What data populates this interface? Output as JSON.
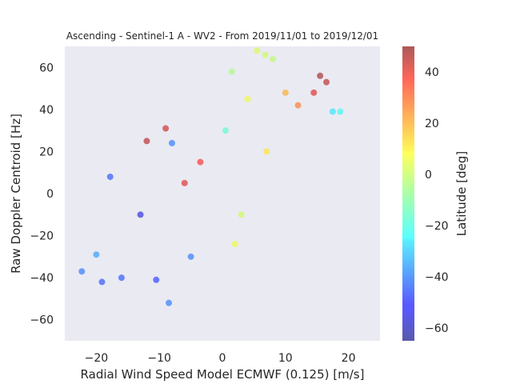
{
  "chart_data": {
    "type": "scatter",
    "title": "Ascending - Sentinel-1 A - WV2 - From 2019/11/01 to 2019/12/01",
    "xlabel": "Radial Wind Speed Model ECMWF (0.125) [m/s]",
    "ylabel": "Raw Doppler Centroid [Hz]",
    "xlim": [
      -25,
      25
    ],
    "ylim": [
      -70,
      70
    ],
    "xticks": [
      -20,
      -10,
      0,
      10,
      20
    ],
    "yticks": [
      -60,
      -40,
      -20,
      0,
      20,
      40,
      60
    ],
    "grid": false,
    "background": "#eaeaf2",
    "point_alpha": 0.55,
    "colorbar": {
      "label": "Latitude [deg]",
      "range": [
        -65,
        50
      ],
      "ticks": [
        -60,
        -40,
        -20,
        0,
        20,
        40
      ],
      "colormap": "jet"
    },
    "points": [
      {
        "x": -22.3,
        "y": -37,
        "c": -40
      },
      {
        "x": -19.1,
        "y": -42,
        "c": -45
      },
      {
        "x": -8.5,
        "y": -52,
        "c": -40
      },
      {
        "x": -17.8,
        "y": 8,
        "c": -45
      },
      {
        "x": 18.7,
        "y": 39,
        "c": -20
      },
      {
        "x": 17.5,
        "y": 39,
        "c": -25
      },
      {
        "x": 16.5,
        "y": 53,
        "c": 45
      },
      {
        "x": 15.5,
        "y": 56,
        "c": 48
      },
      {
        "x": 6.8,
        "y": 66,
        "c": 0
      },
      {
        "x": 5.5,
        "y": 68,
        "c": 2
      },
      {
        "x": 8.0,
        "y": 64,
        "c": -2
      },
      {
        "x": 1.5,
        "y": 58,
        "c": -5
      },
      {
        "x": 14.5,
        "y": 48,
        "c": 40
      },
      {
        "x": -12.0,
        "y": 25,
        "c": 45
      },
      {
        "x": -9.0,
        "y": 31,
        "c": 42
      },
      {
        "x": -8.0,
        "y": 24,
        "c": -40
      },
      {
        "x": 2.0,
        "y": -24,
        "c": 5
      },
      {
        "x": -10.5,
        "y": -41,
        "c": -48
      },
      {
        "x": -16.0,
        "y": -40,
        "c": -45
      },
      {
        "x": -20.0,
        "y": -29,
        "c": -35
      },
      {
        "x": 12.0,
        "y": 42,
        "c": 25
      },
      {
        "x": 10.0,
        "y": 48,
        "c": 18
      },
      {
        "x": 4.0,
        "y": 45,
        "c": 5
      },
      {
        "x": 0.5,
        "y": 30,
        "c": -15
      },
      {
        "x": -3.5,
        "y": 15,
        "c": 35
      },
      {
        "x": -6.0,
        "y": 5,
        "c": 40
      },
      {
        "x": -13.0,
        "y": -10,
        "c": -55
      },
      {
        "x": -5.0,
        "y": -30,
        "c": -40
      },
      {
        "x": 3.0,
        "y": -10,
        "c": 0
      },
      {
        "x": 7.0,
        "y": 20,
        "c": 10
      }
    ]
  }
}
